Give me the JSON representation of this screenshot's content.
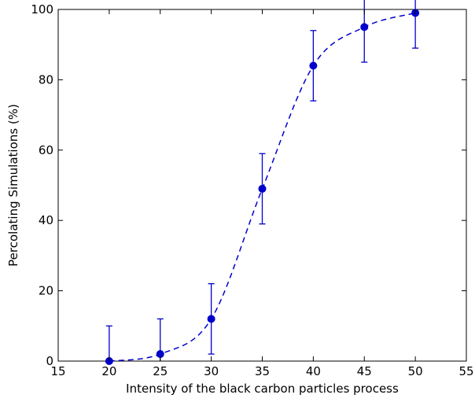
{
  "chart_data": {
    "type": "line",
    "title": "",
    "xlabel": "Intensity of the black carbon particles process",
    "ylabel": "Percolating Simulations (%)",
    "xlim": [
      15,
      55
    ],
    "ylim": [
      0,
      100
    ],
    "xticks": [
      "15",
      "20",
      "25",
      "30",
      "35",
      "40",
      "45",
      "50",
      "55"
    ],
    "yticks": [
      "0",
      "20",
      "40",
      "60",
      "80",
      "100"
    ],
    "grid": false,
    "legend": "none",
    "series": [
      {
        "x": [
          20,
          25,
          30,
          35,
          40,
          45,
          50
        ],
        "y": [
          0,
          2,
          12,
          49,
          84,
          95,
          99
        ],
        "error": [
          10,
          10,
          10,
          10,
          10,
          10,
          10
        ],
        "line_style": "dashed",
        "marker": "circle",
        "color": "#0000cc"
      }
    ]
  }
}
